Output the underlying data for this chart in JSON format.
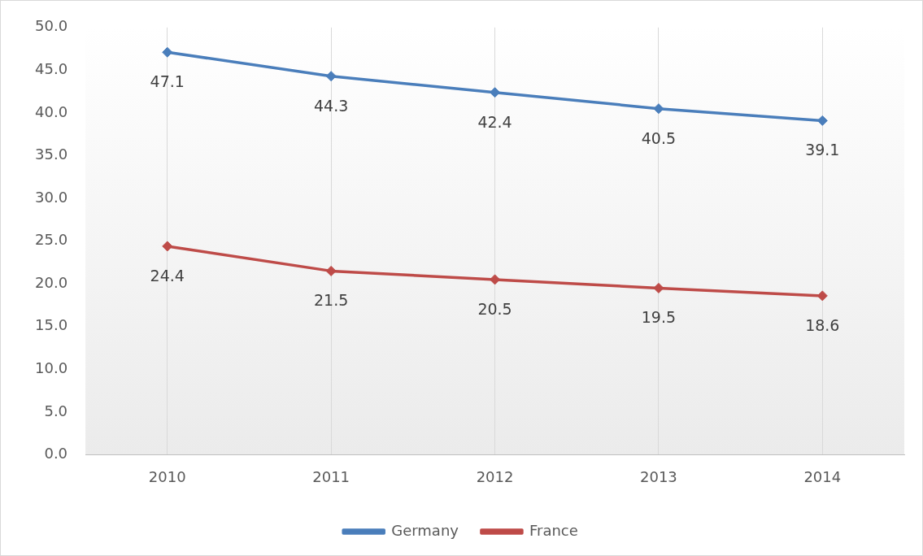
{
  "chart_data": {
    "type": "line",
    "categories": [
      "2010",
      "2011",
      "2012",
      "2013",
      "2014"
    ],
    "series": [
      {
        "name": "Germany",
        "color": "#4a7ebb",
        "values": [
          47.1,
          44.3,
          42.4,
          40.5,
          39.1
        ]
      },
      {
        "name": "France",
        "color": "#be4b48",
        "values": [
          24.4,
          21.5,
          20.5,
          19.5,
          18.6
        ]
      }
    ],
    "ylim": [
      0,
      50
    ],
    "yticks": [
      {
        "value": 0,
        "label": "0.0"
      },
      {
        "value": 5,
        "label": "5.0"
      },
      {
        "value": 10,
        "label": "10.0"
      },
      {
        "value": 15,
        "label": "15.0"
      },
      {
        "value": 20,
        "label": "20.0"
      },
      {
        "value": 25,
        "label": "25.0"
      },
      {
        "value": 30,
        "label": "30.0"
      },
      {
        "value": 35,
        "label": "35.0"
      },
      {
        "value": 40,
        "label": "40.0"
      },
      {
        "value": 45,
        "label": "45.0"
      },
      {
        "value": 50,
        "label": "50.0"
      }
    ],
    "grid": "x",
    "legend": "bottom",
    "marker": "diamond",
    "line_style": "solid",
    "data_labels": true
  }
}
